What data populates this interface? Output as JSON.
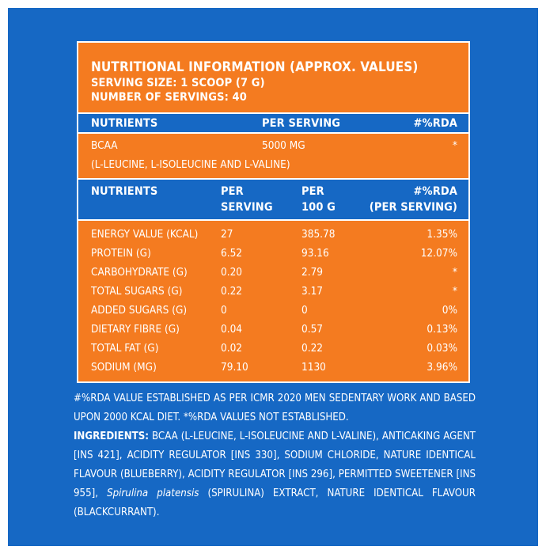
{
  "header": {
    "title": "NUTRITIONAL INFORMATION (APPROX. VALUES)",
    "serving_size": "SERVING SIZE: 1 SCOOP (7 G)",
    "servings": "NUMBER OF SERVINGS: 40"
  },
  "table1": {
    "headers": [
      "NUTRIENTS",
      "PER SERVING",
      "#%RDA"
    ],
    "row": {
      "name": "BCAA",
      "per_serving": "5000 MG",
      "rda": "*",
      "subtext": "(L-LEUCINE, L-ISOLEUCINE AND L-VALINE)"
    }
  },
  "table2": {
    "headers": {
      "nutrients": "NUTRIENTS",
      "per_serving_1": "PER",
      "per_serving_2": "SERVING",
      "per_100g_1": "PER",
      "per_100g_2": "100 G",
      "rda_1": "#%RDA",
      "rda_2": "(PER SERVING)"
    },
    "rows": [
      {
        "name": "ENERGY VALUE (KCAL)",
        "per_serving": "27",
        "per_100g": "385.78",
        "rda": "1.35%"
      },
      {
        "name": "PROTEIN (G)",
        "per_serving": "6.52",
        "per_100g": "93.16",
        "rda": "12.07%"
      },
      {
        "name": "CARBOHYDRATE (G)",
        "per_serving": "0.20",
        "per_100g": "2.79",
        "rda": "*"
      },
      {
        "name": "TOTAL SUGARS (G)",
        "per_serving": "0.22",
        "per_100g": "3.17",
        "rda": "*"
      },
      {
        "name": "ADDED SUGARS (G)",
        "per_serving": "0",
        "per_100g": "0",
        "rda": "0%"
      },
      {
        "name": "DIETARY FIBRE (G)",
        "per_serving": "0.04",
        "per_100g": "0.57",
        "rda": "0.13%"
      },
      {
        "name": "TOTAL FAT (G)",
        "per_serving": "0.02",
        "per_100g": "0.22",
        "rda": "0.03%"
      },
      {
        "name": "SODIUM (MG)",
        "per_serving": "79.10",
        "per_100g": "1130",
        "rda": "3.96%"
      }
    ]
  },
  "notes": {
    "rda_note": "#%RDA VALUE ESTABLISHED AS PER ICMR 2020 MEN SEDENTARY WORK AND BASED UPON 2000 KCAL DIET. *%RDA VALUES NOT ESTABLISHED.",
    "ingredients_label": "INGREDIENTS:",
    "ingredients_part1": "BCAA (L-LEUCINE, L-ISOLEUCINE AND L-VALINE), ANTICAKING AGENT [INS 421], ACIDITY REGULATOR [INS 330], SODIUM CHLORIDE, NATURE IDENTICAL FLAVOUR (BLUEBERRY), ACIDITY REGULATOR [INS 296], PERMITTED SWEETENER [INS 955],",
    "ingredients_italic": "Spirulina platensis",
    "ingredients_part2": "(SPIRULINA) EXTRACT, NATURE IDENTICAL FLAVOUR (BLACKCURRANT)."
  },
  "colors": {
    "background_blue": "#1668c4",
    "table_orange": "#f47b20",
    "text": "#ffffff"
  }
}
